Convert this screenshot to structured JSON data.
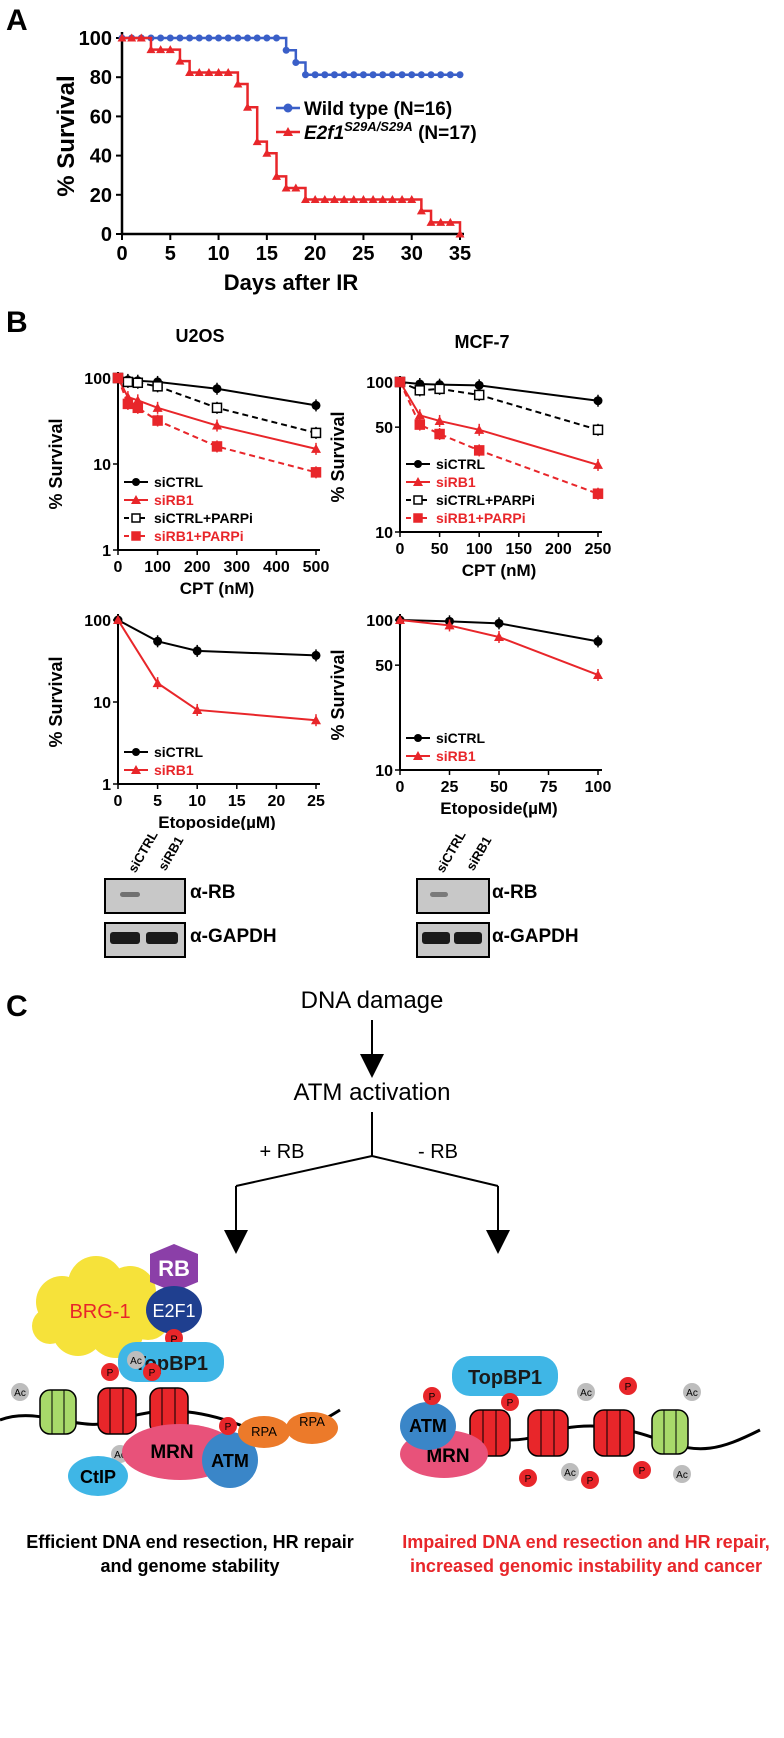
{
  "panels": {
    "A": "A",
    "B": "B",
    "C": "C"
  },
  "panel_a": {
    "chart_data": {
      "type": "line",
      "xlabel": "Days after IR",
      "ylabel": "% Survival",
      "xlim": [
        0,
        35
      ],
      "ylim": [
        0,
        100
      ],
      "xticks": [
        0,
        5,
        10,
        15,
        20,
        25,
        30,
        35
      ],
      "yticks": [
        0,
        20,
        40,
        60,
        80,
        100
      ],
      "legend_position": "right",
      "series": [
        {
          "name": "Wild type (N=16)",
          "color": "#3a5fc8",
          "marker": "circle",
          "x": [
            0,
            1,
            2,
            3,
            4,
            5,
            6,
            7,
            8,
            9,
            10,
            11,
            12,
            13,
            14,
            15,
            16,
            17,
            18,
            19,
            20,
            21,
            22,
            23,
            24,
            25,
            26,
            27,
            28,
            29,
            30,
            31,
            32,
            33,
            34,
            35
          ],
          "y": [
            100,
            100,
            100,
            100,
            100,
            100,
            100,
            100,
            100,
            100,
            100,
            100,
            100,
            100,
            100,
            100,
            100,
            93.75,
            87.5,
            81.25,
            81.25,
            81.25,
            81.25,
            81.25,
            81.25,
            81.25,
            81.25,
            81.25,
            81.25,
            81.25,
            81.25,
            81.25,
            81.25,
            81.25,
            81.25,
            81.25
          ]
        },
        {
          "name_main": "E2f1",
          "name_sup": "S29A/S29A",
          "name_suffix": " (N=17)",
          "color": "#e8262a",
          "marker": "triangle",
          "x": [
            0,
            1,
            2,
            3,
            4,
            5,
            6,
            7,
            8,
            9,
            10,
            11,
            12,
            13,
            14,
            15,
            16,
            17,
            18,
            19,
            20,
            21,
            22,
            23,
            24,
            25,
            26,
            27,
            28,
            29,
            30,
            31,
            32,
            33,
            34,
            35
          ],
          "y": [
            100,
            100,
            100,
            94.1,
            94.1,
            94.1,
            88.2,
            82.4,
            82.4,
            82.4,
            82.4,
            82.4,
            76.5,
            64.7,
            47.1,
            41.2,
            29.4,
            23.5,
            23.5,
            17.6,
            17.6,
            17.6,
            17.6,
            17.6,
            17.6,
            17.6,
            17.6,
            17.6,
            17.6,
            17.6,
            17.6,
            11.8,
            5.9,
            5.9,
            5.9,
            0
          ]
        }
      ]
    }
  },
  "panel_b": {
    "u2os_title": "U2OS",
    "mcf7_title": "MCF-7",
    "charts": [
      {
        "id": "u2os_cpt",
        "type": "line",
        "log_y": true,
        "ylim": [
          1,
          100
        ],
        "yticks": [
          1,
          10,
          100
        ],
        "xlim": [
          0,
          500
        ],
        "xticks": [
          0,
          100,
          200,
          300,
          400,
          500
        ],
        "xlabel": "CPT (nM)",
        "ylabel": "% Survival",
        "legend_position": "bottom-left",
        "series": [
          {
            "name": "siCTRL",
            "style": "solid-black-circle",
            "x": [
              0,
              25,
              50,
              100,
              250,
              500
            ],
            "y": [
              100,
              95,
              93,
              90,
              75,
              48
            ]
          },
          {
            "name": "siRB1",
            "style": "solid-red-triangle",
            "x": [
              0,
              25,
              50,
              100,
              250,
              500
            ],
            "y": [
              100,
              60,
              55,
              45,
              28,
              15
            ]
          },
          {
            "name": "siCTRL+PARPi",
            "style": "dashed-black-opensquare",
            "x": [
              0,
              25,
              50,
              100,
              250,
              500
            ],
            "y": [
              100,
              90,
              88,
              80,
              45,
              23
            ]
          },
          {
            "name": "siRB1+PARPi",
            "style": "dashed-red-square",
            "x": [
              0,
              25,
              50,
              100,
              250,
              500
            ],
            "y": [
              100,
              50,
              45,
              32,
              16,
              8
            ]
          }
        ]
      },
      {
        "id": "mcf7_cpt",
        "type": "line",
        "log_y": true,
        "ylim": [
          10,
          100
        ],
        "yticks": [
          10,
          50,
          100
        ],
        "xlim": [
          0,
          250
        ],
        "xticks": [
          0,
          50,
          100,
          150,
          200,
          250
        ],
        "xlabel": "CPT (nM)",
        "ylabel": "% Survival",
        "legend_position": "bottom-left",
        "series": [
          {
            "name": "siCTRL",
            "style": "solid-black-circle",
            "x": [
              0,
              25,
              50,
              100,
              250
            ],
            "y": [
              100,
              97,
              96,
              95,
              75
            ]
          },
          {
            "name": "siRB1",
            "style": "solid-red-triangle",
            "x": [
              0,
              25,
              50,
              100,
              250
            ],
            "y": [
              100,
              60,
              55,
              48,
              28
            ]
          },
          {
            "name": "siCTRL+PARPi",
            "style": "dashed-black-opensquare",
            "x": [
              0,
              25,
              50,
              100,
              250
            ],
            "y": [
              100,
              88,
              90,
              82,
              48
            ]
          },
          {
            "name": "siRB1+PARPi",
            "style": "dashed-red-square",
            "x": [
              0,
              25,
              50,
              100,
              250
            ],
            "y": [
              100,
              52,
              45,
              35,
              18
            ]
          }
        ]
      },
      {
        "id": "u2os_eto",
        "type": "line",
        "log_y": true,
        "ylim": [
          1,
          100
        ],
        "yticks": [
          1,
          10,
          100
        ],
        "xlim": [
          0,
          25
        ],
        "xticks": [
          0,
          5,
          10,
          15,
          20,
          25
        ],
        "xlabel": "Etoposide(µM)",
        "ylabel": "% Survival",
        "legend_position": "bottom-left",
        "series": [
          {
            "name": "siCTRL",
            "style": "solid-black-circle",
            "x": [
              0,
              5,
              10,
              25
            ],
            "y": [
              100,
              55,
              42,
              37
            ]
          },
          {
            "name": "siRB1",
            "style": "solid-red-triangle",
            "x": [
              0,
              5,
              10,
              25
            ],
            "y": [
              100,
              17,
              8,
              6
            ]
          }
        ]
      },
      {
        "id": "mcf7_eto",
        "type": "line",
        "log_y": true,
        "ylim": [
          10,
          100
        ],
        "yticks": [
          10,
          50,
          100
        ],
        "xlim": [
          0,
          100
        ],
        "xticks": [
          0,
          25,
          50,
          75,
          100
        ],
        "xlabel": "Etoposide(µM)",
        "ylabel": "% Survival",
        "legend_position": "bottom-left",
        "series": [
          {
            "name": "siCTRL",
            "style": "solid-black-circle",
            "x": [
              0,
              25,
              50,
              100
            ],
            "y": [
              100,
              98,
              95,
              72
            ]
          },
          {
            "name": "siRB1",
            "style": "solid-red-triangle",
            "x": [
              0,
              25,
              50,
              100
            ],
            "y": [
              100,
              92,
              77,
              43
            ]
          }
        ]
      }
    ],
    "blot": {
      "lane1": "siCTRL",
      "lane2": "siRB1",
      "rb_label": "α-RB",
      "gapdh_label": "α-GAPDH"
    }
  },
  "panel_c": {
    "dna_damage": "DNA damage",
    "atm_activation": "ATM activation",
    "plus_rb": "+ RB",
    "minus_rb": "- RB",
    "proteins": {
      "brg1": "BRG-1",
      "rb": "RB",
      "e2f1": "E2F1",
      "topbp1": "TopBP1",
      "ctip": "CtIP",
      "mrn": "MRN",
      "atm": "ATM",
      "rpa": "RPA",
      "p": "P",
      "ac": "Ac"
    },
    "caption_left": "Efficient DNA end resection, HR repair and genome stability",
    "caption_right": "Impaired DNA end resection and HR repair, increased genomic instability and cancer",
    "colors": {
      "brg1": "#f6e23a",
      "rb": "#8b3fa8",
      "e2f1": "#1f3f8f",
      "topbp1": "#3fb6e6",
      "mrn": "#e8527a",
      "atm": "#3a86c8",
      "rpa": "#ec7a2a",
      "phospho": "#e8262a",
      "acetyl": "#bdbdbd",
      "nucleosome_red": "#e8262a",
      "nucleosome_green": "#a8d96a",
      "caption_right": "#e8262a"
    }
  }
}
